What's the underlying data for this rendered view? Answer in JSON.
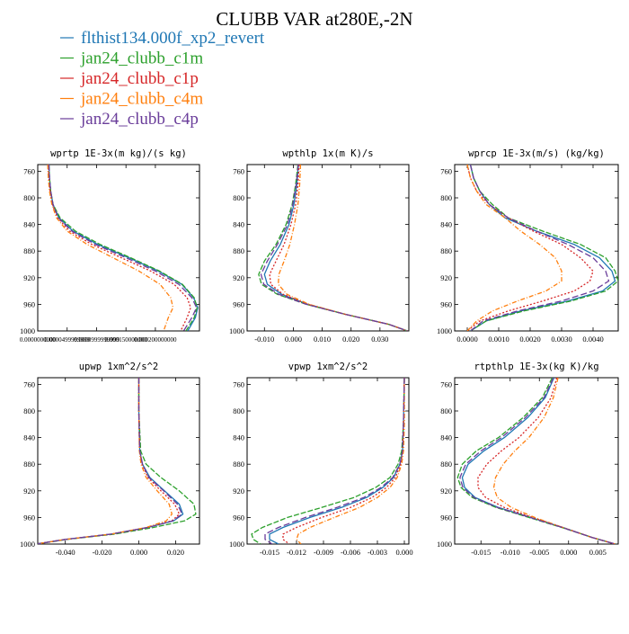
{
  "title": "CLUBB VAR at280E,-2N",
  "legend": [
    {
      "label": "flthist134.000f_xp2_revert",
      "color": "#1f77b4"
    },
    {
      "label": "jan24_clubb_c1m",
      "color": "#2ca02c"
    },
    {
      "label": "jan24_clubb_c1p",
      "color": "#d62728"
    },
    {
      "label": "jan24_clubb_c4m",
      "color": "#ff7f0e"
    },
    {
      "label": "jan24_clubb_c4p",
      "color": "#6a3d9a"
    }
  ],
  "chart_data": [
    {
      "type": "line",
      "title": "wprtp  1E-3x(m kg)/(s kg)",
      "xlim": [
        0,
        0.000275
      ],
      "ylim": [
        1000,
        750
      ],
      "yticks": [
        760,
        800,
        840,
        880,
        920,
        960,
        1000
      ],
      "xticks": [
        {
          "v": 0,
          "label": "0.0000000000"
        },
        {
          "v": 5e-05,
          "label": "0.0000499999999"
        },
        {
          "v": 0.0001,
          "label": "0.0000999999999"
        },
        {
          "v": 0.00015,
          "label": "0.000150000000"
        },
        {
          "v": 0.0002,
          "label": "0.000200000000"
        }
      ],
      "y": [
        750,
        770,
        790,
        810,
        830,
        850,
        870,
        890,
        910,
        930,
        950,
        965,
        980,
        1000
      ],
      "series": [
        {
          "name": "flthist134.000f_xp2_revert",
          "color": "#1f77b4",
          "values": [
            1.9e-05,
            2e-05,
            2.2e-05,
            2.6e-05,
            3.6e-05,
            6e-05,
            0.000102,
            0.000155,
            0.000205,
            0.000245,
            0.000265,
            0.000272,
            0.000268,
            0.000255
          ]
        },
        {
          "name": "jan24_clubb_c1m",
          "color": "#2ca02c",
          "values": [
            1.9e-05,
            2e-05,
            2.2e-05,
            2.6e-05,
            3.8e-05,
            6.4e-05,
            0.000106,
            0.000158,
            0.000207,
            0.000246,
            0.000266,
            0.000271,
            0.000266,
            0.000252
          ]
        },
        {
          "name": "jan24_clubb_c1p",
          "color": "#d62728",
          "values": [
            1.8e-05,
            1.9e-05,
            2.1e-05,
            2.5e-05,
            3.4e-05,
            5.4e-05,
            9.2e-05,
            0.000142,
            0.000192,
            0.000232,
            0.000254,
            0.00026,
            0.000254,
            0.000243
          ]
        },
        {
          "name": "jan24_clubb_c4m",
          "color": "#ff7f0e",
          "values": [
            1.7e-05,
            1.8e-05,
            2e-05,
            2.4e-05,
            3.2e-05,
            5e-05,
            8.4e-05,
            0.000128,
            0.000172,
            0.000208,
            0.000226,
            0.00023,
            0.000222,
            0.000214
          ]
        },
        {
          "name": "jan24_clubb_c4p",
          "color": "#6a3d9a",
          "values": [
            1.9e-05,
            2e-05,
            2.2e-05,
            2.6e-05,
            3.5e-05,
            5.8e-05,
            9.8e-05,
            0.00015,
            0.0002,
            0.00024,
            0.000262,
            0.00027,
            0.000262,
            0.000248
          ]
        }
      ]
    },
    {
      "type": "line",
      "title": "wpthlp  1x(m K)/s",
      "xlim": [
        -0.016,
        0.04
      ],
      "ylim": [
        1000,
        750
      ],
      "yticks": [
        760,
        800,
        840,
        880,
        920,
        960,
        1000
      ],
      "xticks": [
        {
          "v": -0.01,
          "label": "-0.010"
        },
        {
          "v": 0,
          "label": "0.000"
        },
        {
          "v": 0.01,
          "label": "0.010"
        },
        {
          "v": 0.02,
          "label": "0.020"
        },
        {
          "v": 0.03,
          "label": "0.030"
        }
      ],
      "y": [
        750,
        780,
        810,
        840,
        870,
        895,
        915,
        930,
        945,
        960,
        975,
        990,
        1000
      ],
      "series": [
        {
          "name": "flthist134.000f_xp2_revert",
          "color": "#1f77b4",
          "values": [
            0.0018,
            0.0012,
            0.0002,
            -0.0015,
            -0.0045,
            -0.008,
            -0.01,
            -0.009,
            -0.004,
            0.005,
            0.018,
            0.033,
            0.0395
          ]
        },
        {
          "name": "jan24_clubb_c1m",
          "color": "#2ca02c",
          "values": [
            0.0016,
            0.0008,
            -0.0004,
            -0.0025,
            -0.006,
            -0.01,
            -0.012,
            -0.011,
            -0.0055,
            0.0045,
            0.018,
            0.033,
            0.0395
          ]
        },
        {
          "name": "jan24_clubb_c1p",
          "color": "#d62728",
          "values": [
            0.002,
            0.0016,
            0.0008,
            -0.0008,
            -0.0032,
            -0.006,
            -0.0082,
            -0.0078,
            -0.0035,
            0.005,
            0.018,
            0.033,
            0.0395
          ]
        },
        {
          "name": "jan24_clubb_c4m",
          "color": "#ff7f0e",
          "values": [
            0.0025,
            0.0022,
            0.0016,
            0.0004,
            -0.0012,
            -0.0032,
            -0.005,
            -0.0052,
            -0.0022,
            0.0055,
            0.018,
            0.033,
            0.0395
          ]
        },
        {
          "name": "jan24_clubb_c4p",
          "color": "#6a3d9a",
          "values": [
            0.0017,
            0.001,
            -0.0002,
            -0.002,
            -0.0055,
            -0.009,
            -0.0112,
            -0.0102,
            -0.005,
            0.0045,
            0.018,
            0.033,
            0.0395
          ]
        }
      ]
    },
    {
      "type": "line",
      "title": "wprcp  1E-3x(m/s) (kg/kg)",
      "xlim": [
        -0.0004,
        0.0048
      ],
      "ylim": [
        1000,
        750
      ],
      "yticks": [
        760,
        800,
        840,
        880,
        920,
        960,
        1000
      ],
      "xticks": [
        {
          "v": 0,
          "label": "0.0000"
        },
        {
          "v": 0.001,
          "label": "0.0010"
        },
        {
          "v": 0.002,
          "label": "0.0020"
        },
        {
          "v": 0.003,
          "label": "0.0030"
        },
        {
          "v": 0.004,
          "label": "0.0040"
        }
      ],
      "y": [
        750,
        770,
        790,
        810,
        830,
        850,
        870,
        890,
        910,
        925,
        940,
        955,
        970,
        985,
        1000
      ],
      "series": [
        {
          "name": "flthist134.000f_xp2_revert",
          "color": "#1f77b4",
          "values": [
            0.0001,
            0.0002,
            0.0004,
            0.0007,
            0.0012,
            0.0022,
            0.0034,
            0.0042,
            0.0046,
            0.0047,
            0.0043,
            0.0032,
            0.0017,
            0.0006,
            0.0001
          ]
        },
        {
          "name": "jan24_clubb_c1m",
          "color": "#2ca02c",
          "values": [
            0.0001,
            0.0002,
            0.0004,
            0.0008,
            0.0013,
            0.0024,
            0.0036,
            0.0044,
            0.0047,
            0.0048,
            0.0044,
            0.0033,
            0.0018,
            0.0006,
            0.0001
          ]
        },
        {
          "name": "jan24_clubb_c1p",
          "color": "#d62728",
          "values": [
            0.0,
            0.0001,
            0.0003,
            0.0007,
            0.0013,
            0.0021,
            0.003,
            0.0036,
            0.004,
            0.0039,
            0.0034,
            0.0024,
            0.0013,
            0.0004,
            0.0
          ]
        },
        {
          "name": "jan24_clubb_c4m",
          "color": "#ff7f0e",
          "values": [
            0.0,
            0.0001,
            0.0003,
            0.0006,
            0.0012,
            0.0017,
            0.0023,
            0.0028,
            0.003,
            0.003,
            0.0025,
            0.0016,
            0.0008,
            0.0003,
            0.0
          ]
        },
        {
          "name": "jan24_clubb_c4p",
          "color": "#6a3d9a",
          "values": [
            0.0001,
            0.0002,
            0.0004,
            0.0007,
            0.0013,
            0.0022,
            0.0032,
            0.004,
            0.0044,
            0.0045,
            0.004,
            0.003,
            0.0016,
            0.0005,
            0.0001
          ]
        }
      ]
    },
    {
      "type": "line",
      "title": "upwp  1xm^2/s^2",
      "xlim": [
        -0.055,
        0.033
      ],
      "ylim": [
        1000,
        750
      ],
      "yticks": [
        760,
        800,
        840,
        880,
        920,
        960,
        1000
      ],
      "xticks": [
        {
          "v": -0.04,
          "label": "-0.040"
        },
        {
          "v": -0.02,
          "label": "-0.020"
        },
        {
          "v": 0,
          "label": "0.000"
        },
        {
          "v": 0.02,
          "label": "0.020"
        }
      ],
      "y": [
        750,
        800,
        860,
        880,
        900,
        920,
        940,
        955,
        965,
        975,
        985,
        993,
        1000
      ],
      "series": [
        {
          "name": "flthist134.000f_xp2_revert",
          "color": "#1f77b4",
          "values": [
            0.0,
            0.0,
            0.0005,
            0.002,
            0.006,
            0.014,
            0.022,
            0.024,
            0.019,
            0.005,
            -0.015,
            -0.04,
            -0.056
          ]
        },
        {
          "name": "jan24_clubb_c1m",
          "color": "#2ca02c",
          "values": [
            0.0,
            0.0,
            0.001,
            0.004,
            0.012,
            0.022,
            0.03,
            0.031,
            0.025,
            0.008,
            -0.013,
            -0.039,
            -0.056
          ]
        },
        {
          "name": "jan24_clubb_c1p",
          "color": "#d62728",
          "values": [
            0.0,
            0.0,
            0.0004,
            0.0018,
            0.005,
            0.012,
            0.0195,
            0.022,
            0.018,
            0.005,
            -0.015,
            -0.04,
            -0.056
          ]
        },
        {
          "name": "jan24_clubb_c4m",
          "color": "#ff7f0e",
          "values": [
            0.0,
            0.0,
            0.0003,
            0.0012,
            0.004,
            0.01,
            0.0165,
            0.018,
            0.015,
            0.004,
            -0.015,
            -0.04,
            -0.056
          ]
        },
        {
          "name": "jan24_clubb_c4p",
          "color": "#6a3d9a",
          "values": [
            0.0,
            0.0,
            0.0005,
            0.002,
            0.0055,
            0.0135,
            0.021,
            0.0235,
            0.0185,
            0.005,
            -0.015,
            -0.04,
            -0.056
          ]
        }
      ]
    },
    {
      "type": "line",
      "title": "vpwp  1xm^2/s^2",
      "xlim": [
        -0.0175,
        0.0005
      ],
      "ylim": [
        1000,
        750
      ],
      "yticks": [
        760,
        800,
        840,
        880,
        920,
        960,
        1000
      ],
      "xticks": [
        {
          "v": -0.015,
          "label": "-0.015"
        },
        {
          "v": -0.012,
          "label": "-0.012"
        },
        {
          "v": -0.009,
          "label": "-0.009"
        },
        {
          "v": -0.006,
          "label": "-0.006"
        },
        {
          "v": -0.003,
          "label": "-0.003"
        },
        {
          "v": 0,
          "label": "0.000"
        }
      ],
      "y": [
        750,
        820,
        860,
        880,
        900,
        915,
        930,
        945,
        960,
        975,
        985,
        993,
        1000
      ],
      "series": [
        {
          "name": "flthist134.000f_xp2_revert",
          "color": "#1f77b4",
          "values": [
            0.0,
            -0.0001,
            -0.0002,
            -0.0005,
            -0.0012,
            -0.0024,
            -0.0042,
            -0.007,
            -0.0105,
            -0.0135,
            -0.015,
            -0.015,
            -0.014
          ]
        },
        {
          "name": "jan24_clubb_c1m",
          "color": "#2ca02c",
          "values": [
            0.0,
            -0.0001,
            -0.0003,
            -0.0007,
            -0.0016,
            -0.0032,
            -0.0056,
            -0.0092,
            -0.013,
            -0.0158,
            -0.017,
            -0.0168,
            -0.016
          ]
        },
        {
          "name": "jan24_clubb_c1p",
          "color": "#d62728",
          "values": [
            0.0,
            -0.0001,
            -0.0002,
            -0.0004,
            -0.001,
            -0.002,
            -0.0036,
            -0.006,
            -0.0092,
            -0.012,
            -0.0135,
            -0.0135,
            -0.0128
          ]
        },
        {
          "name": "jan24_clubb_c4m",
          "color": "#ff7f0e",
          "values": [
            0.0,
            0.0,
            -0.0001,
            -0.0003,
            -0.0008,
            -0.0016,
            -0.003,
            -0.005,
            -0.0078,
            -0.0105,
            -0.0118,
            -0.012,
            -0.0115
          ]
        },
        {
          "name": "jan24_clubb_c4p",
          "color": "#6a3d9a",
          "values": [
            0.0,
            -0.0001,
            -0.0002,
            -0.0005,
            -0.0013,
            -0.0026,
            -0.0045,
            -0.0075,
            -0.011,
            -0.014,
            -0.0155,
            -0.0155,
            -0.0147
          ]
        }
      ]
    },
    {
      "type": "line",
      "title": "rtpthlp  1E-3x(kg K)/kg",
      "xlim": [
        -0.0195,
        0.0085
      ],
      "ylim": [
        1000,
        750
      ],
      "yticks": [
        760,
        800,
        840,
        880,
        920,
        960,
        1000
      ],
      "xticks": [
        {
          "v": -0.015,
          "label": "-0.015"
        },
        {
          "v": -0.01,
          "label": "-0.010"
        },
        {
          "v": -0.005,
          "label": "-0.005"
        },
        {
          "v": 0,
          "label": "0.000"
        },
        {
          "v": 0.005,
          "label": "0.005"
        }
      ],
      "y": [
        750,
        780,
        810,
        840,
        860,
        880,
        900,
        915,
        930,
        945,
        960,
        975,
        990,
        1000
      ],
      "series": [
        {
          "name": "flthist134.000f_xp2_revert",
          "color": "#1f77b4",
          "values": [
            -0.0025,
            -0.004,
            -0.007,
            -0.011,
            -0.0145,
            -0.0172,
            -0.0182,
            -0.0178,
            -0.016,
            -0.012,
            -0.0065,
            -0.001,
            0.004,
            0.008
          ]
        },
        {
          "name": "jan24_clubb_c1m",
          "color": "#2ca02c",
          "values": [
            -0.0028,
            -0.0045,
            -0.0078,
            -0.012,
            -0.0158,
            -0.0182,
            -0.019,
            -0.0184,
            -0.0165,
            -0.0124,
            -0.0068,
            -0.0012,
            0.004,
            0.008
          ]
        },
        {
          "name": "jan24_clubb_c1p",
          "color": "#d62728",
          "values": [
            -0.002,
            -0.003,
            -0.0052,
            -0.0085,
            -0.0115,
            -0.014,
            -0.0155,
            -0.0155,
            -0.0142,
            -0.011,
            -0.0062,
            -0.001,
            0.004,
            0.008
          ]
        },
        {
          "name": "jan24_clubb_c4m",
          "color": "#ff7f0e",
          "values": [
            -0.0018,
            -0.0026,
            -0.0042,
            -0.0068,
            -0.0092,
            -0.0112,
            -0.0125,
            -0.0128,
            -0.0122,
            -0.0098,
            -0.0058,
            -0.001,
            0.004,
            0.008
          ]
        },
        {
          "name": "jan24_clubb_c4p",
          "color": "#6a3d9a",
          "values": [
            -0.0026,
            -0.0042,
            -0.0074,
            -0.0115,
            -0.015,
            -0.0176,
            -0.0186,
            -0.0181,
            -0.0162,
            -0.0122,
            -0.0066,
            -0.0011,
            0.004,
            0.008
          ]
        }
      ]
    }
  ]
}
